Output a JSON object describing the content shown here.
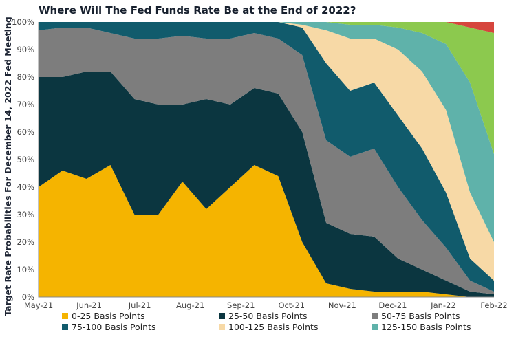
{
  "chart_data": {
    "type": "area",
    "stacked": true,
    "title": "Where Will The Fed Funds Rate Be at the End of 2022?",
    "ylabel": "Target Rate Probabilities For December 14, 2022 Fed Meeting",
    "xlabel": "",
    "ylim": [
      0,
      100
    ],
    "y_ticks": [
      "0%",
      "10%",
      "20%",
      "30%",
      "40%",
      "50%",
      "60%",
      "70%",
      "80%",
      "90%",
      "100%"
    ],
    "x_ticks": [
      "May-21",
      "Jun-21",
      "Jul-21",
      "Aug-21",
      "Sep-21",
      "Oct-21",
      "Nov-21",
      "Dec-21",
      "Jan-22",
      "Feb-22"
    ],
    "x": [
      "May-21",
      "mid May-21",
      "Jun-21",
      "mid Jun-21",
      "Jul-21",
      "mid Jul-21",
      "Aug-21",
      "mid Aug-21",
      "Sep-21",
      "mid Sep-21",
      "Oct-21",
      "mid Oct-21",
      "Nov-21",
      "mid Nov-21",
      "Dec-21",
      "mid Dec-21",
      "Jan-22",
      "mid Jan-22",
      "late Jan-22",
      "Feb-22"
    ],
    "series": [
      {
        "name": "0-25 Basis Points",
        "color": "#f5b400",
        "values": [
          40,
          46,
          43,
          48,
          30,
          30,
          42,
          32,
          40,
          48,
          44,
          20,
          5,
          3,
          2,
          2,
          2,
          1,
          0,
          0
        ]
      },
      {
        "name": "25-50 Basis Points",
        "color": "#0b3640",
        "values": [
          40,
          34,
          39,
          34,
          42,
          40,
          28,
          40,
          30,
          28,
          30,
          40,
          22,
          20,
          20,
          12,
          8,
          5,
          2,
          1
        ]
      },
      {
        "name": "50-75 Basis Points",
        "color": "#7d7d7d",
        "values": [
          17,
          18,
          16,
          14,
          22,
          24,
          25,
          22,
          24,
          20,
          20,
          28,
          30,
          28,
          32,
          26,
          18,
          12,
          4,
          1
        ]
      },
      {
        "name": "75-100 Basis Points",
        "color": "#115b6c",
        "values": [
          3,
          2,
          2,
          4,
          6,
          6,
          5,
          6,
          6,
          4,
          6,
          10,
          28,
          24,
          24,
          26,
          26,
          20,
          8,
          4
        ]
      },
      {
        "name": "100-125 Basis Points",
        "color": "#f7d9a6",
        "values": [
          0,
          0,
          0,
          0,
          0,
          0,
          0,
          0,
          0,
          0,
          0,
          1,
          12,
          19,
          16,
          24,
          28,
          30,
          24,
          14
        ]
      },
      {
        "name": "125-150 Basis Points",
        "color": "#5fb2aa",
        "values": [
          0,
          0,
          0,
          0,
          0,
          0,
          0,
          0,
          0,
          0,
          0,
          1,
          3,
          5,
          5,
          8,
          14,
          24,
          40,
          32
        ]
      },
      {
        "name": "",
        "color": "#8cc94e",
        "values": [
          0,
          0,
          0,
          0,
          0,
          0,
          0,
          0,
          0,
          0,
          0,
          0,
          0,
          1,
          1,
          2,
          4,
          8,
          20,
          44
        ]
      },
      {
        "name": "",
        "color": "#d6453d",
        "values": [
          0,
          0,
          0,
          0,
          0,
          0,
          0,
          0,
          0,
          0,
          0,
          0,
          0,
          0,
          0,
          0,
          0,
          0,
          2,
          4
        ]
      }
    ],
    "legend_position": "bottom",
    "grid": false
  }
}
